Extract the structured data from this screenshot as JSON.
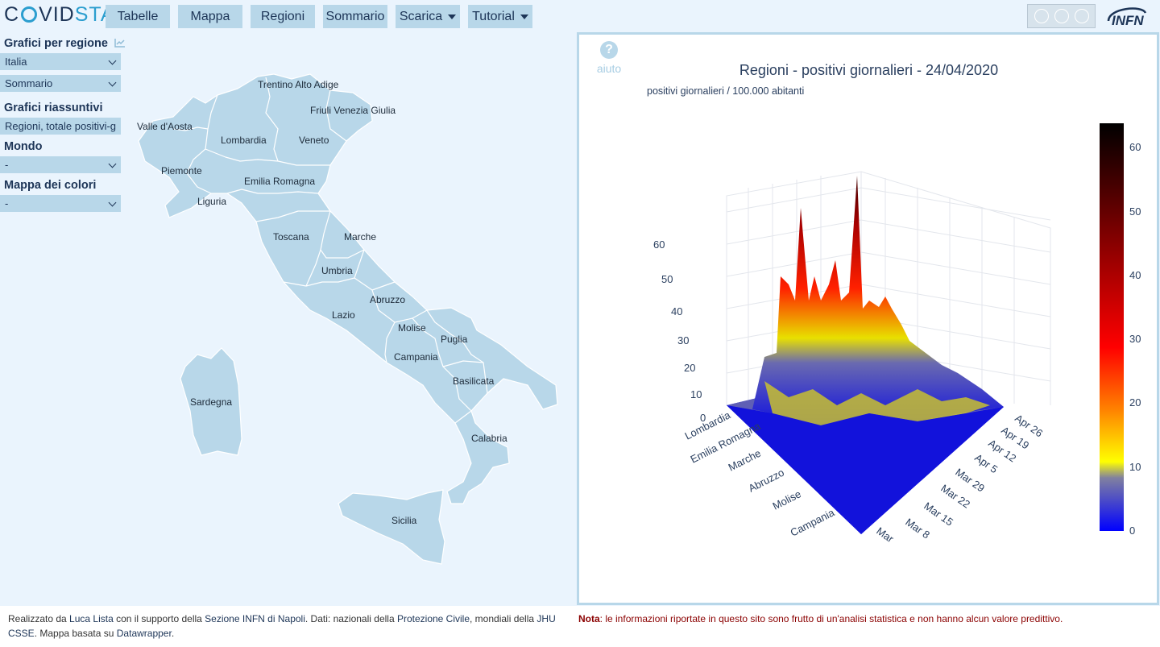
{
  "header": {
    "logo_left": "C",
    "logo_mid": "VID",
    "logo_right": "STAT",
    "nav": [
      {
        "label": "Tabelle",
        "dropdown": false
      },
      {
        "label": "Mappa",
        "dropdown": false
      },
      {
        "label": "Regioni",
        "dropdown": false
      },
      {
        "label": "Sommario",
        "dropdown": false
      },
      {
        "label": "Scarica",
        "dropdown": true
      },
      {
        "label": "Tutorial",
        "dropdown": true
      }
    ],
    "license_badge": "CC BY SA",
    "org_logo": "INFN"
  },
  "sidebar": {
    "section1_title": "Grafici per regione",
    "region_select": "Italia",
    "view_select": "Sommario",
    "section2_title": "Grafici riassuntivi",
    "summary_select": "Regioni, totale positivi-g",
    "section3_title": "Mondo",
    "world_select": "-",
    "section4_title": "Mappa dei colori",
    "colormap_select": "-"
  },
  "map": {
    "regions": [
      "Trentino Alto Adige",
      "Friuli Venezia Giulia",
      "Valle d'Aosta",
      "Lombardia",
      "Veneto",
      "Piemonte",
      "Emilia Romagna",
      "Liguria",
      "Toscana",
      "Marche",
      "Umbria",
      "Abruzzo",
      "Lazio",
      "Molise",
      "Puglia",
      "Campania",
      "Basilicata",
      "Sardegna",
      "Calabria",
      "Sicilia"
    ],
    "fill_color": "#b8d7e9"
  },
  "plot": {
    "help_label": "aiuto",
    "title": "Regioni - positivi giornalieri - 24/04/2020",
    "subtitle": "positivi giornalieri / 100.000 abitanti",
    "z_ticks": [
      "0",
      "10",
      "20",
      "30",
      "40",
      "50",
      "60"
    ],
    "region_ticks": [
      "Lombardia",
      "Emilia Romagna",
      "Marche",
      "Abruzzo",
      "Molise",
      "Campania"
    ],
    "date_ticks": [
      "Apr 26",
      "Apr 19",
      "Apr 12",
      "Apr 5",
      "Mar 29",
      "Mar 22",
      "Mar 15",
      "Mar 8",
      "Mar"
    ],
    "colorbar_ticks": [
      "0",
      "10",
      "20",
      "30",
      "40",
      "50",
      "60"
    ],
    "colorscale": [
      "#0000ff",
      "#ffff00",
      "#ff0000",
      "#8b0000",
      "#000000"
    ]
  },
  "footer": {
    "t1": "Realizzato da ",
    "author": "Luca Lista",
    "t2": " con il supporto della ",
    "org": "Sezione INFN di Napoli",
    "t3": ". Dati: nazionali della ",
    "src1": "Protezione Civile",
    "t4": ", mondiali della ",
    "src2": "JHU CSSE",
    "t5": ". Mappa basata su ",
    "src3": "Datawrapper",
    "t6": ".",
    "note_label": "Nota",
    "note_text": ": le informazioni riportate in questo sito sono frutto di un'analisi statistica e non hanno alcun valore predittivo."
  }
}
